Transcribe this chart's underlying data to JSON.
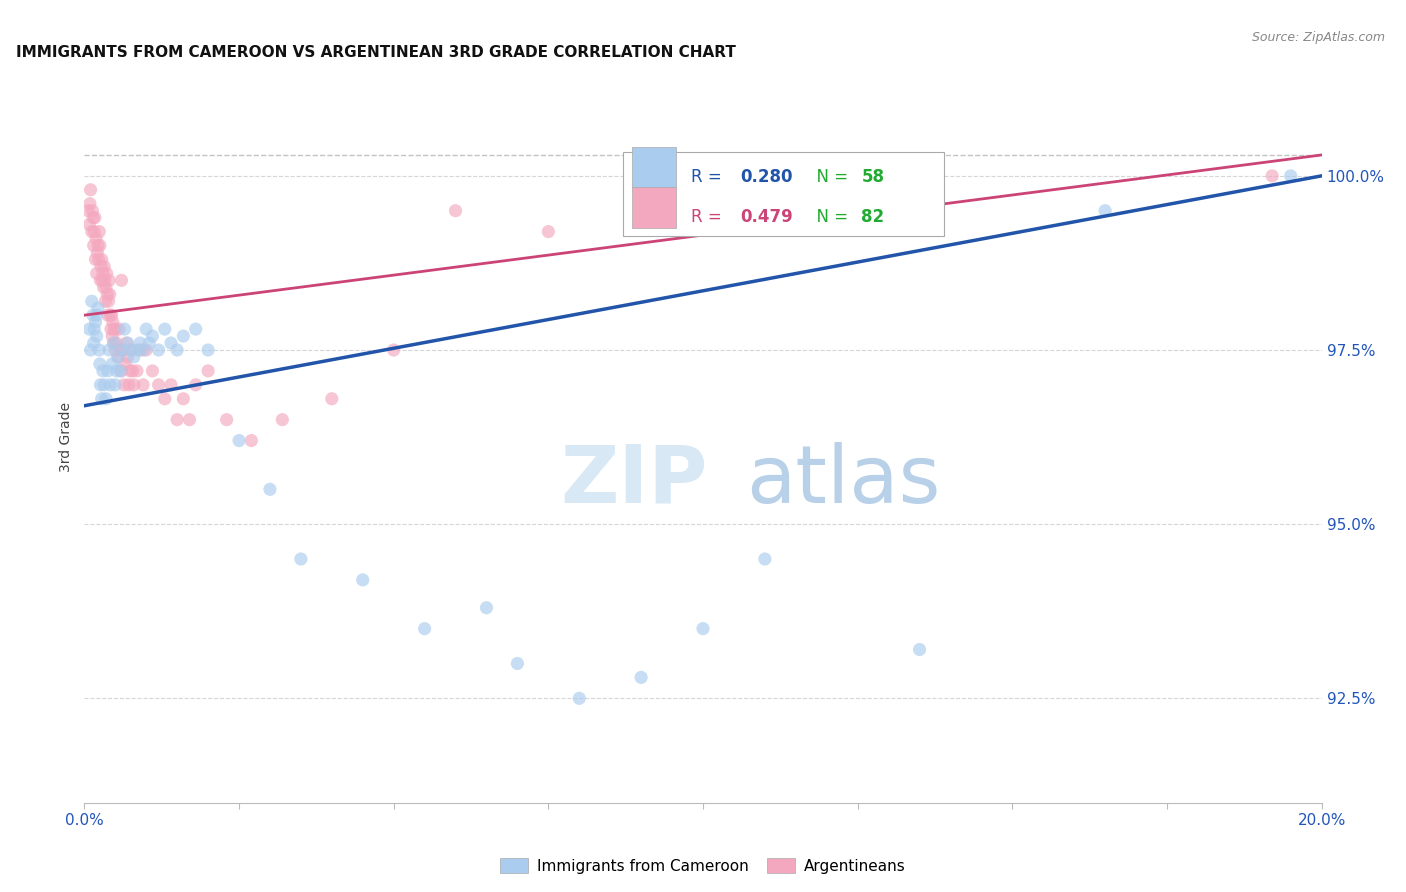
{
  "title": "IMMIGRANTS FROM CAMEROON VS ARGENTINEAN 3RD GRADE CORRELATION CHART",
  "source": "Source: ZipAtlas.com",
  "ylabel": "3rd Grade",
  "right_yticks": [
    100.0,
    97.5,
    95.0,
    92.5
  ],
  "right_ytick_labels": [
    "100.0%",
    "97.5%",
    "95.0%",
    "92.5%"
  ],
  "xmin": 0.0,
  "xmax": 20.0,
  "ymin": 91.0,
  "ymax": 101.5,
  "legend_blue_r": "R = 0.280",
  "legend_blue_n": "N = 58",
  "legend_pink_r": "R = 0.479",
  "legend_pink_n": "N = 82",
  "blue_color": "#aaccee",
  "pink_color": "#f4a8bf",
  "blue_line_color": "#2255aa",
  "pink_line_color": "#cc4477",
  "dot_size": 90,
  "dot_alpha": 0.65,
  "blue_points_x": [
    0.08,
    0.1,
    0.12,
    0.14,
    0.15,
    0.16,
    0.18,
    0.2,
    0.2,
    0.22,
    0.24,
    0.25,
    0.26,
    0.28,
    0.3,
    0.32,
    0.35,
    0.38,
    0.4,
    0.42,
    0.45,
    0.48,
    0.5,
    0.52,
    0.55,
    0.58,
    0.62,
    0.65,
    0.7,
    0.75,
    0.8,
    0.85,
    0.9,
    0.95,
    1.0,
    1.05,
    1.1,
    1.2,
    1.3,
    1.4,
    1.5,
    1.6,
    1.8,
    2.0,
    2.5,
    3.0,
    3.5,
    4.5,
    5.5,
    6.5,
    7.0,
    8.0,
    9.0,
    10.0,
    11.0,
    13.5,
    16.5,
    19.5
  ],
  "blue_points_y": [
    97.8,
    97.5,
    98.2,
    98.0,
    97.6,
    97.8,
    97.9,
    97.7,
    98.0,
    98.1,
    97.5,
    97.3,
    97.0,
    96.8,
    97.2,
    97.0,
    96.8,
    97.2,
    97.5,
    97.0,
    97.3,
    97.6,
    97.0,
    97.2,
    97.4,
    97.2,
    97.5,
    97.8,
    97.6,
    97.5,
    97.4,
    97.5,
    97.6,
    97.5,
    97.8,
    97.6,
    97.7,
    97.5,
    97.8,
    97.6,
    97.5,
    97.7,
    97.8,
    97.5,
    96.2,
    95.5,
    94.5,
    94.2,
    93.5,
    93.8,
    93.0,
    92.5,
    92.8,
    93.5,
    94.5,
    93.2,
    99.5,
    100.0
  ],
  "pink_points_x": [
    0.06,
    0.08,
    0.09,
    0.1,
    0.12,
    0.13,
    0.14,
    0.15,
    0.16,
    0.17,
    0.18,
    0.19,
    0.2,
    0.21,
    0.22,
    0.23,
    0.24,
    0.25,
    0.26,
    0.27,
    0.28,
    0.29,
    0.3,
    0.31,
    0.32,
    0.33,
    0.34,
    0.35,
    0.36,
    0.37,
    0.38,
    0.39,
    0.4,
    0.41,
    0.42,
    0.43,
    0.44,
    0.45,
    0.46,
    0.47,
    0.48,
    0.5,
    0.52,
    0.54,
    0.56,
    0.58,
    0.6,
    0.62,
    0.64,
    0.66,
    0.68,
    0.7,
    0.72,
    0.74,
    0.76,
    0.78,
    0.8,
    0.85,
    0.9,
    0.95,
    1.0,
    1.1,
    1.2,
    1.3,
    1.4,
    1.5,
    1.6,
    1.7,
    1.8,
    2.0,
    2.3,
    2.7,
    3.2,
    4.0,
    5.0,
    6.0,
    7.5,
    9.0,
    12.0,
    19.2,
    0.5,
    0.6
  ],
  "pink_points_y": [
    99.5,
    99.3,
    99.6,
    99.8,
    99.2,
    99.5,
    99.4,
    99.0,
    99.2,
    99.4,
    98.8,
    99.1,
    98.6,
    98.9,
    99.0,
    98.8,
    99.2,
    99.0,
    98.5,
    98.7,
    98.8,
    98.5,
    98.6,
    98.4,
    98.7,
    98.5,
    98.2,
    98.4,
    98.6,
    98.3,
    98.0,
    98.2,
    98.5,
    98.3,
    98.0,
    97.8,
    98.0,
    97.7,
    97.9,
    97.6,
    97.8,
    97.5,
    97.6,
    97.4,
    97.8,
    97.5,
    97.2,
    97.5,
    97.0,
    97.3,
    97.6,
    97.4,
    97.0,
    97.2,
    97.5,
    97.2,
    97.0,
    97.2,
    97.5,
    97.0,
    97.5,
    97.2,
    97.0,
    96.8,
    97.0,
    96.5,
    96.8,
    96.5,
    97.0,
    97.2,
    96.5,
    96.2,
    96.5,
    96.8,
    97.5,
    99.5,
    99.2,
    99.5,
    99.8,
    100.0,
    97.8,
    98.5
  ],
  "blue_trend_x0": 0.0,
  "blue_trend_x1": 20.0,
  "blue_trend_y0": 96.7,
  "blue_trend_y1": 100.0,
  "pink_trend_x0": 0.0,
  "pink_trend_x1": 20.0,
  "pink_trend_y0": 98.0,
  "pink_trend_y1": 100.3,
  "dashed_line_y": 100.3,
  "watermark_zip": "ZIP",
  "watermark_atlas": "atlas"
}
